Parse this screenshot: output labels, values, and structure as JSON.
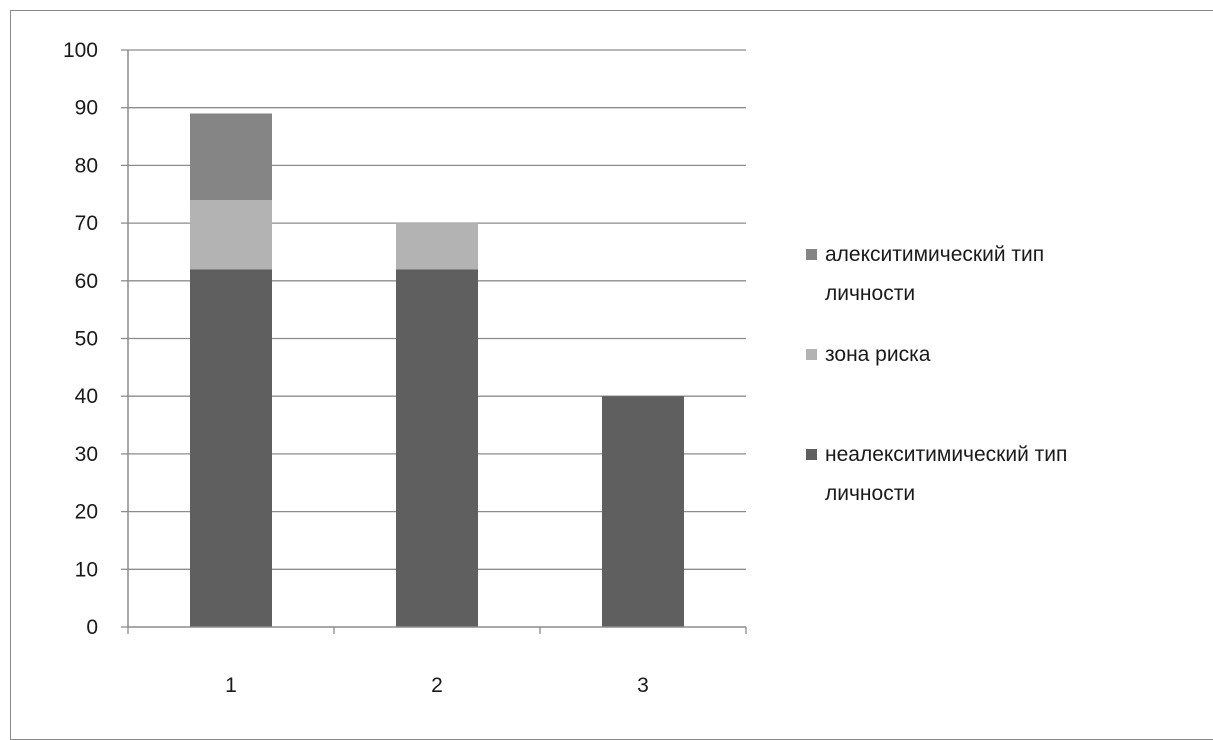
{
  "chart_data": {
    "type": "bar",
    "stacked": true,
    "categories": [
      "1",
      "2",
      "3"
    ],
    "series": [
      {
        "name": "неалекситимический тип личности",
        "values": [
          62,
          62,
          40
        ],
        "color": "#5f5f5f"
      },
      {
        "name": "зона риска",
        "values": [
          12,
          8,
          0
        ],
        "color": "#b3b3b3"
      },
      {
        "name": "алекситимический тип личности",
        "values": [
          15,
          0,
          0
        ],
        "color": "#858585"
      }
    ],
    "ylim": [
      0,
      100
    ],
    "yticks": [
      0,
      10,
      20,
      30,
      40,
      50,
      60,
      70,
      80,
      90,
      100
    ],
    "grid": true,
    "legend_position": "right",
    "legend_order": [
      {
        "name": "алекситимический тип",
        "name_line2": "личности",
        "color": "#858585"
      },
      {
        "name": "зона риска",
        "name_line2": "",
        "color": "#b3b3b3"
      },
      {
        "name": "неалекситимический тип",
        "name_line2": "личности",
        "color": "#5f5f5f"
      }
    ],
    "colors": {
      "grid": "#8c8c8c",
      "axis": "#8c8c8c"
    }
  }
}
